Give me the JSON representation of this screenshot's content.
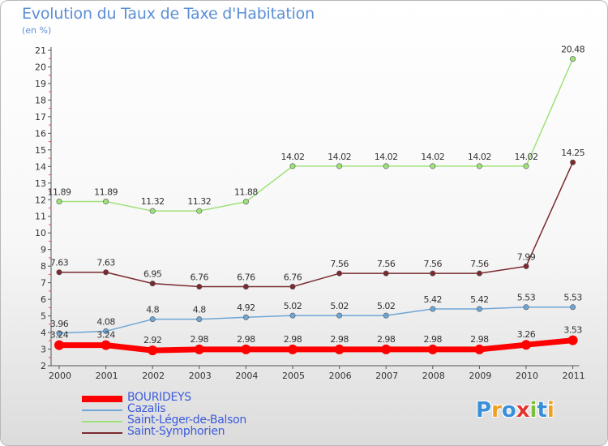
{
  "title": "Evolution du Taux de Taxe d'Habitation",
  "subtitle": "(en %)",
  "logo": {
    "letters": [
      "P",
      "r",
      "o",
      "x",
      "i",
      "t",
      "i"
    ],
    "colors": [
      "#3a8fd8",
      "#f0a020",
      "#3a8fd8",
      "#e6322d",
      "#7bbf3a",
      "#3a8fd8",
      "#f0a020"
    ]
  },
  "chart_data": {
    "type": "line",
    "title": "Evolution du Taux de Taxe d'Habitation",
    "ylabel": "(en %)",
    "xlabel": "",
    "x": [
      "2000",
      "2001",
      "2002",
      "2003",
      "2004",
      "2005",
      "2006",
      "2007",
      "2008",
      "2009",
      "2010",
      "2011"
    ],
    "yticks": [
      "2",
      "3",
      "4",
      "5",
      "6",
      "7",
      "8",
      "9",
      "10",
      "11",
      "12",
      "13",
      "14",
      "15",
      "16",
      "17",
      "18",
      "19",
      "20",
      "21"
    ],
    "ylim": [
      2,
      21
    ],
    "series": [
      {
        "name": "BOURIDEYS",
        "color": "#ff0000",
        "values": [
          3.24,
          3.24,
          2.92,
          2.98,
          2.98,
          2.98,
          2.98,
          2.98,
          2.98,
          2.98,
          3.26,
          3.53
        ],
        "labels": [
          "3.24",
          "3.24",
          "2.92",
          "2.98",
          "2.98",
          "2.98",
          "2.98",
          "2.98",
          "2.98",
          "2.98",
          "3.26",
          "3.53"
        ]
      },
      {
        "name": "Cazalis",
        "color": "#6ea6d6",
        "values": [
          3.96,
          4.08,
          4.8,
          4.8,
          4.92,
          5.02,
          5.02,
          5.02,
          5.42,
          5.42,
          5.53,
          5.53
        ],
        "labels": [
          "3.96",
          "4.08",
          "4.8",
          "4.8",
          "4.92",
          "5.02",
          "5.02",
          "5.02",
          "5.42",
          "5.42",
          "5.53",
          "5.53"
        ]
      },
      {
        "name": "Saint-Léger-de-Balson",
        "color": "#9ee27a",
        "values": [
          11.89,
          11.89,
          11.32,
          11.32,
          11.88,
          14.02,
          14.02,
          14.02,
          14.02,
          14.02,
          14.02,
          20.48
        ],
        "labels": [
          "11.89",
          "11.89",
          "11.32",
          "11.32",
          "11.88",
          "14.02",
          "14.02",
          "14.02",
          "14.02",
          "14.02",
          "14.02",
          "20.48"
        ]
      },
      {
        "name": "Saint-Symphorien",
        "color": "#7a2a2e",
        "values": [
          7.63,
          7.63,
          6.95,
          6.76,
          6.76,
          6.76,
          7.56,
          7.56,
          7.56,
          7.56,
          7.99,
          14.25
        ],
        "labels": [
          "7.63",
          "7.63",
          "6.95",
          "6.76",
          "6.76",
          "6.76",
          "7.56",
          "7.56",
          "7.56",
          "7.56",
          "7.99",
          "14.25"
        ]
      }
    ],
    "legend": [
      "BOURIDEYS",
      "Cazalis",
      "Saint-Léger-de-Balson",
      "Saint-Symphorien"
    ],
    "legend_position": "bottom-left",
    "grid": false
  }
}
